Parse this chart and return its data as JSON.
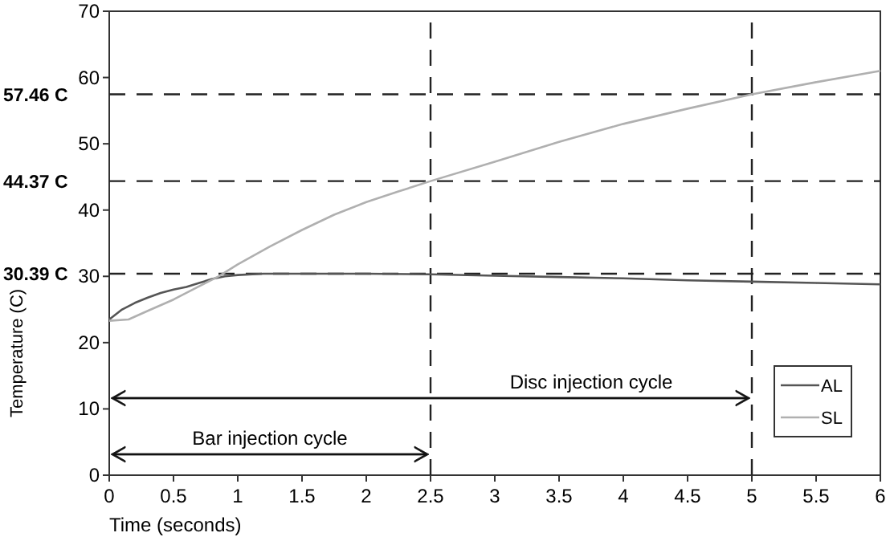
{
  "chart_data": {
    "type": "line",
    "xlabel": "Time (seconds)",
    "ylabel": "Temperature (C)",
    "xlim": [
      0,
      6
    ],
    "xticks": [
      0,
      0.5,
      1,
      1.5,
      2,
      2.5,
      3,
      3.5,
      4,
      4.5,
      5,
      5.5,
      6
    ],
    "ylim": [
      0,
      70
    ],
    "yticks": [
      0,
      10,
      20,
      30,
      40,
      50,
      60,
      70
    ],
    "grid": false,
    "legend": "bottom right",
    "marker": "none",
    "line_style": "solid",
    "series": [
      {
        "name": "AL",
        "color": "#555555",
        "x": [
          0,
          0.1,
          0.2,
          0.3,
          0.4,
          0.5,
          0.6,
          0.7,
          0.8,
          0.9,
          1,
          1.2,
          1.5,
          2,
          2.5,
          3,
          3.5,
          4,
          4.5,
          5,
          5.5,
          6
        ],
        "values": [
          23.5,
          25,
          26,
          26.8,
          27.5,
          28,
          28.4,
          29,
          29.6,
          30,
          30.2,
          30.39,
          30.4,
          30.4,
          30.3,
          30.1,
          29.9,
          29.7,
          29.4,
          29.2,
          29,
          28.8
        ]
      },
      {
        "name": "SL",
        "color": "#b0b0b0",
        "x": [
          0,
          0.15,
          0.3,
          0.5,
          0.7,
          0.85,
          1,
          1.25,
          1.5,
          1.75,
          2,
          2.25,
          2.5,
          3,
          3.5,
          4,
          4.5,
          5,
          5.5,
          6
        ],
        "values": [
          23.3,
          23.5,
          24.8,
          26.5,
          28.5,
          30,
          31.8,
          34.5,
          37,
          39.3,
          41.2,
          42.8,
          44.37,
          47.3,
          50.3,
          53,
          55.3,
          57.46,
          59.3,
          61
        ]
      }
    ],
    "ref_lines": [
      {
        "axis": "y",
        "value": 30.39,
        "label": "30.39 C",
        "line_style": "dashed",
        "color": "#222222"
      },
      {
        "axis": "y",
        "value": 44.37,
        "label": "44.37 C",
        "line_style": "dashed",
        "color": "#222222"
      },
      {
        "axis": "y",
        "value": 57.46,
        "label": "57.46 C",
        "line_style": "dashed",
        "color": "#222222"
      },
      {
        "axis": "x",
        "value": 2.5,
        "line_style": "dashed",
        "color": "#222222"
      },
      {
        "axis": "x",
        "value": 5,
        "line_style": "dashed",
        "color": "#222222"
      }
    ],
    "annotations": [
      "Bar injection cycle",
      "Disc injection cycle"
    ]
  }
}
